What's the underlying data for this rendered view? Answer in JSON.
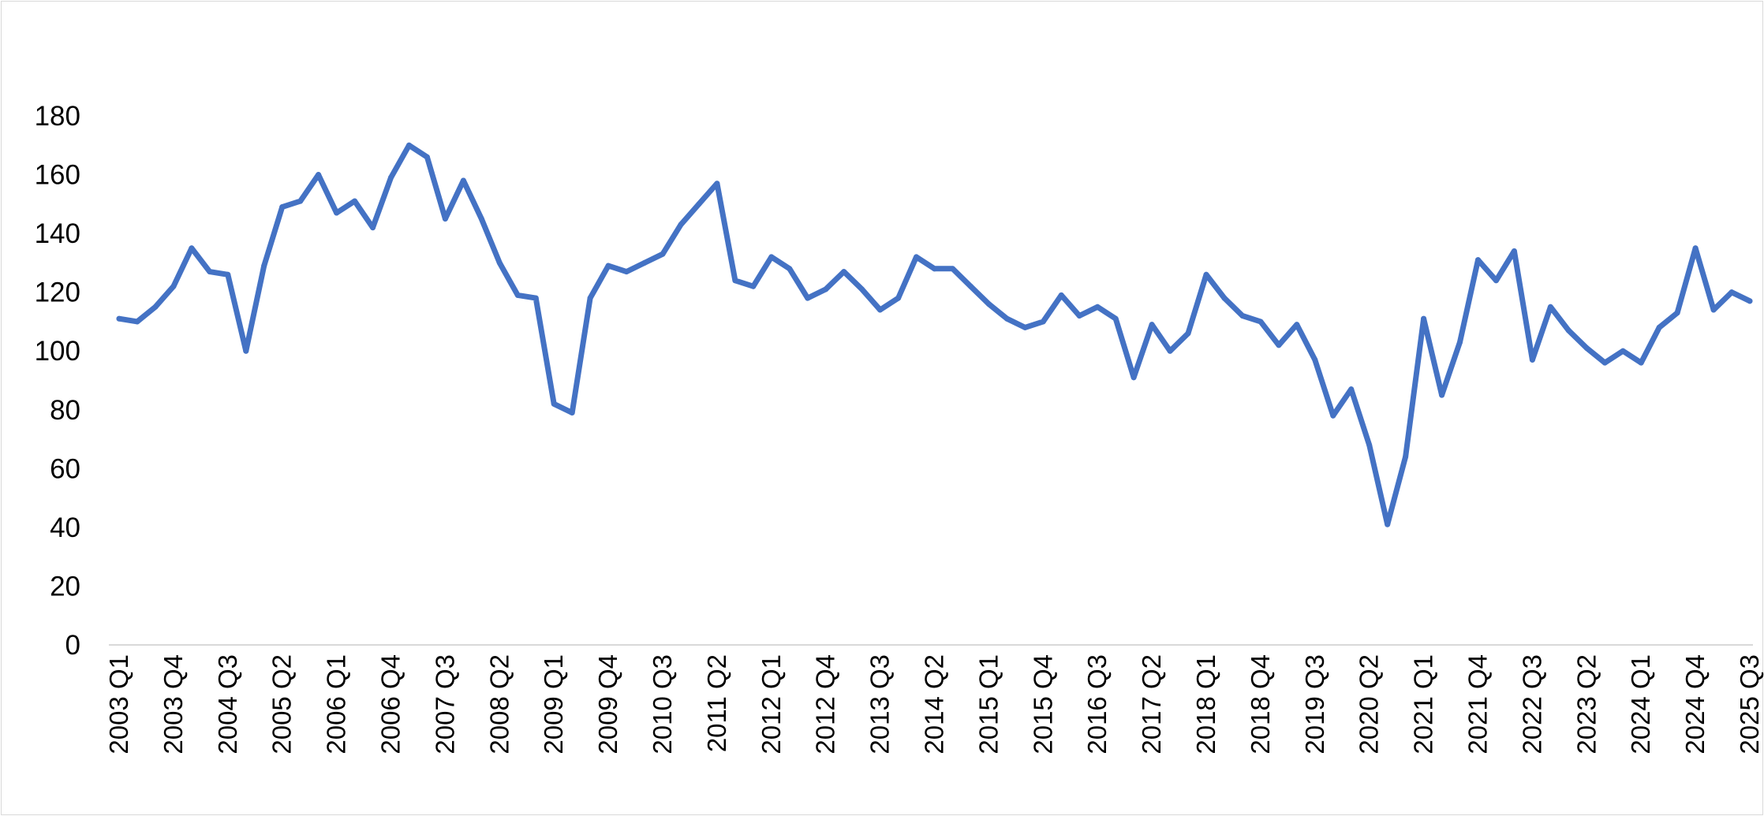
{
  "chart_data": {
    "type": "line",
    "title": "",
    "xlabel": "",
    "ylabel": "",
    "ylim": [
      0,
      180
    ],
    "yticks": [
      0,
      20,
      40,
      60,
      80,
      100,
      120,
      140,
      160,
      180
    ],
    "grid": false,
    "legend": "none",
    "line_color": "#4472C4",
    "axis_color": "#D9D9D9",
    "x_tick_labels": [
      "2003 Q1",
      "2003 Q4",
      "2004 Q3",
      "2005 Q2",
      "2006 Q1",
      "2006 Q4",
      "2007 Q3",
      "2008 Q2",
      "2009 Q1",
      "2009 Q4",
      "2010 Q3",
      "2011 Q2",
      "2012 Q1",
      "2012 Q4",
      "2013 Q3",
      "2014 Q2",
      "2015 Q1",
      "2015 Q4",
      "2016 Q3",
      "2017 Q2",
      "2018 Q1",
      "2018 Q4",
      "2019 Q3",
      "2020 Q2",
      "2021 Q1",
      "2021 Q4",
      "2022 Q3",
      "2023 Q2",
      "2024 Q1",
      "2024 Q4",
      "2025 Q3"
    ],
    "categories": [
      "2003 Q1",
      "2003 Q2",
      "2003 Q3",
      "2003 Q4",
      "2004 Q1",
      "2004 Q2",
      "2004 Q3",
      "2004 Q4",
      "2005 Q1",
      "2005 Q2",
      "2005 Q3",
      "2005 Q4",
      "2006 Q1",
      "2006 Q2",
      "2006 Q3",
      "2006 Q4",
      "2007 Q1",
      "2007 Q2",
      "2007 Q3",
      "2007 Q4",
      "2008 Q1",
      "2008 Q2",
      "2008 Q3",
      "2008 Q4",
      "2009 Q1",
      "2009 Q2",
      "2009 Q3",
      "2009 Q4",
      "2010 Q1",
      "2010 Q2",
      "2010 Q3",
      "2010 Q4",
      "2011 Q1",
      "2011 Q2",
      "2011 Q3",
      "2011 Q4",
      "2012 Q1",
      "2012 Q2",
      "2012 Q3",
      "2012 Q4",
      "2013 Q1",
      "2013 Q2",
      "2013 Q3",
      "2013 Q4",
      "2014 Q1",
      "2014 Q2",
      "2014 Q3",
      "2014 Q4",
      "2015 Q1",
      "2015 Q2",
      "2015 Q3",
      "2015 Q4",
      "2016 Q1",
      "2016 Q2",
      "2016 Q3",
      "2016 Q4",
      "2017 Q1",
      "2017 Q2",
      "2017 Q3",
      "2017 Q4",
      "2018 Q1",
      "2018 Q2",
      "2018 Q3",
      "2018 Q4",
      "2019 Q1",
      "2019 Q2",
      "2019 Q3",
      "2019 Q4",
      "2020 Q1",
      "2020 Q2",
      "2020 Q3",
      "2020 Q4",
      "2021 Q1",
      "2021 Q2",
      "2021 Q3",
      "2021 Q4",
      "2022 Q1",
      "2022 Q2",
      "2022 Q3",
      "2022 Q4",
      "2023 Q1",
      "2023 Q2",
      "2023 Q3",
      "2023 Q4",
      "2024 Q1",
      "2024 Q2",
      "2024 Q3",
      "2024 Q4",
      "2025 Q1",
      "2025 Q2",
      "2025 Q3"
    ],
    "values": [
      111,
      110,
      115,
      122,
      135,
      127,
      126,
      100,
      129,
      149,
      151,
      160,
      147,
      151,
      142,
      159,
      170,
      166,
      145,
      158,
      145,
      130,
      119,
      118,
      82,
      79,
      118,
      129,
      127,
      130,
      133,
      143,
      150,
      157,
      124,
      122,
      132,
      128,
      118,
      121,
      127,
      121,
      114,
      118,
      132,
      128,
      128,
      122,
      116,
      111,
      108,
      110,
      119,
      112,
      115,
      111,
      91,
      109,
      100,
      106,
      126,
      118,
      112,
      110,
      102,
      109,
      97,
      78,
      87,
      68,
      41,
      64,
      111,
      85,
      103,
      131,
      124,
      134,
      97,
      115,
      107,
      101,
      96,
      100,
      96,
      108,
      113,
      135,
      114,
      120,
      117
    ]
  }
}
